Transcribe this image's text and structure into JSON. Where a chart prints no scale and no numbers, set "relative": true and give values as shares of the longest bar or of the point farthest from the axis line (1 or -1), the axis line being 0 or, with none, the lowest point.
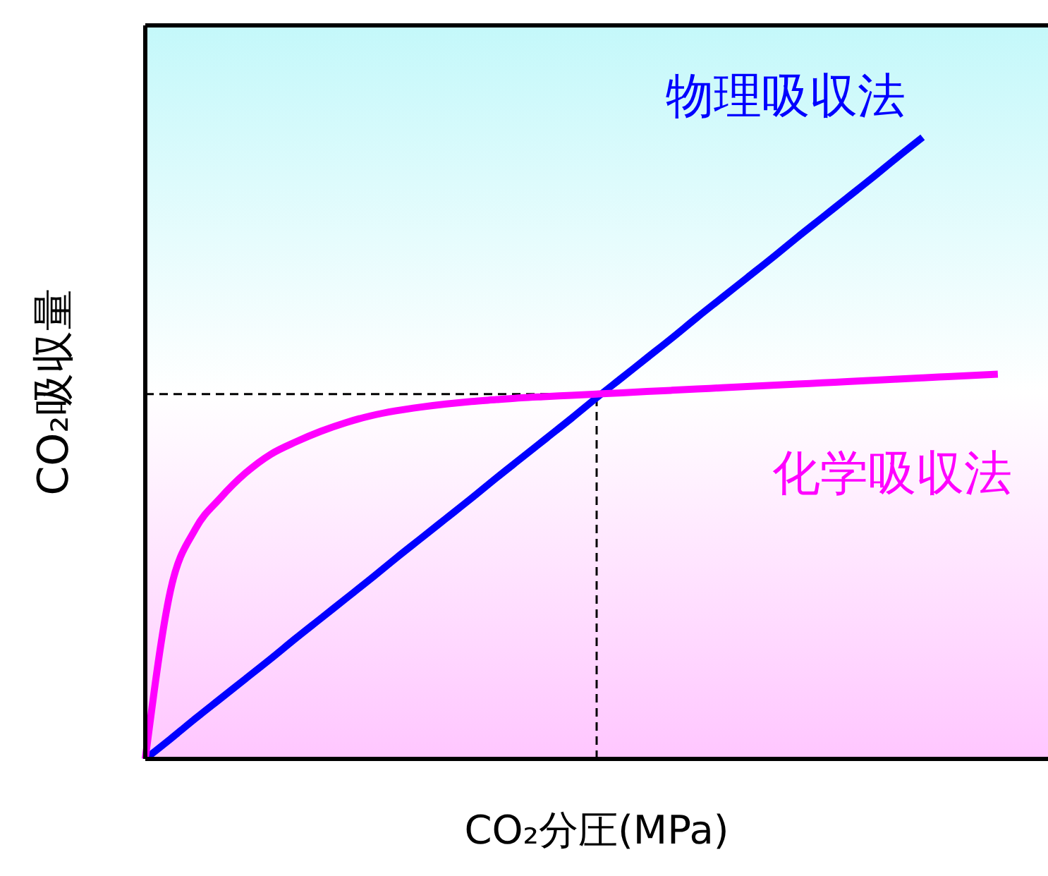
{
  "chart_data": {
    "type": "line",
    "relative": true,
    "xlabel": "CO₂分圧(MPa)",
    "ylabel": "CO₂吸収量",
    "categories": [
      null,
      null,
      null,
      null,
      null,
      null,
      null,
      null,
      null,
      null,
      null,
      null,
      null,
      null,
      null,
      null,
      null,
      null,
      null,
      null,
      null,
      null,
      null,
      null,
      null,
      null,
      null,
      null,
      null,
      null,
      null,
      null,
      null,
      null,
      null,
      null,
      null
    ],
    "series": [
      {
        "name": "物理吸収法",
        "color": "#0000ff",
        "values": [
          0,
          0.032,
          0.065,
          0.097,
          0.129,
          0.161,
          0.194,
          0.226,
          0.258,
          0.29,
          0.323,
          0.355,
          0.387,
          0.419,
          0.452,
          0.484,
          0.516,
          0.548,
          0.581,
          0.613,
          0.645,
          0.677,
          0.71,
          0.742,
          0.774,
          0.806,
          0.839,
          0.871,
          0.903,
          0.935,
          0.968,
          1,
          null,
          null,
          null,
          null,
          null
        ]
      },
      {
        "name": "化学吸収法",
        "color": "#ff00ff",
        "values": [
          0,
          0.27,
          0.37,
          0.42,
          0.46,
          0.49,
          0.51,
          0.527,
          0.541,
          0.552,
          0.56,
          0.566,
          0.571,
          0.575,
          0.578,
          0.581,
          0.583,
          0.585,
          0.587,
          0.589,
          0.591,
          0.593,
          0.595,
          0.597,
          0.599,
          0.601,
          0.603,
          0.605,
          0.607,
          0.609,
          0.611,
          0.613,
          0.615,
          0.617,
          0.619,
          null,
          null
        ]
      }
    ],
    "ref_lines": [
      {
        "axis": "y",
        "value": 0.587,
        "color": "#000000",
        "line_style": "dashed"
      }
    ],
    "grid": false,
    "marker": "none",
    "line_style": "solid"
  }
}
